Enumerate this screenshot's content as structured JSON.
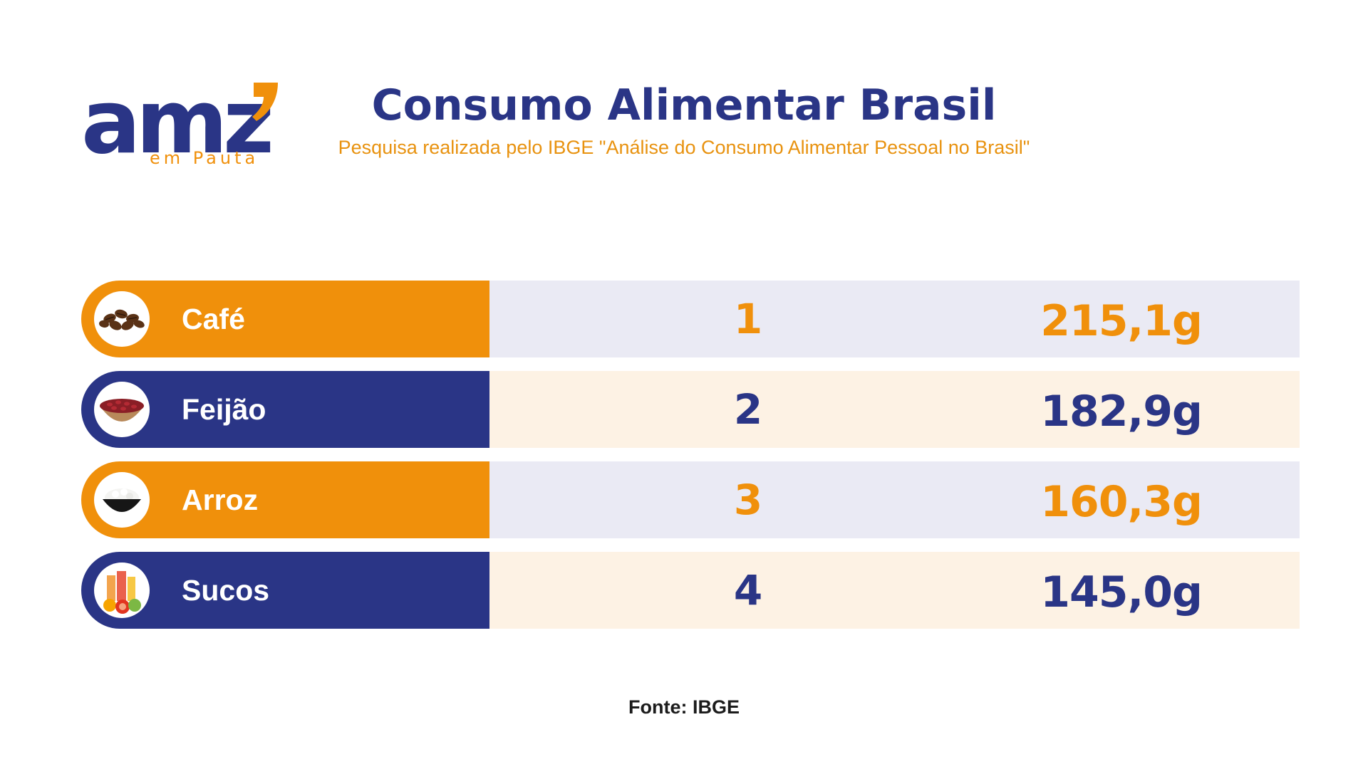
{
  "logo": {
    "word": "amz",
    "sub": "em Pauta"
  },
  "colors": {
    "navy": "#2a3586",
    "orange": "#f0900b",
    "row_bg_light_blue": "#eaeaf4",
    "row_bg_cream": "#fdf2e4"
  },
  "chart_data": {
    "type": "table",
    "title": "Consumo Alimentar Brasil",
    "subtitle": "Pesquisa realizada pelo IBGE \"Análise do Consumo Alimentar Pessoal no Brasil\"",
    "rows": [
      {
        "name": "Café",
        "rank": "1",
        "amount": "215,1g",
        "value": 215.1,
        "icon": "coffee-beans-icon",
        "label_color": "orange",
        "text_color": "orange",
        "data_bg": "row_bg_light_blue"
      },
      {
        "name": "Feijão",
        "rank": "2",
        "amount": "182,9g",
        "value": 182.9,
        "icon": "beans-bowl-icon",
        "label_color": "navy",
        "text_color": "navy",
        "data_bg": "row_bg_cream"
      },
      {
        "name": "Arroz",
        "rank": "3",
        "amount": "160,3g",
        "value": 160.3,
        "icon": "rice-bowl-icon",
        "label_color": "orange",
        "text_color": "orange",
        "data_bg": "row_bg_light_blue"
      },
      {
        "name": "Sucos",
        "rank": "4",
        "amount": "145,0g",
        "value": 145.0,
        "icon": "juice-fruits-icon",
        "label_color": "navy",
        "text_color": "navy",
        "data_bg": "row_bg_cream"
      }
    ],
    "source": "Fonte: IBGE"
  }
}
